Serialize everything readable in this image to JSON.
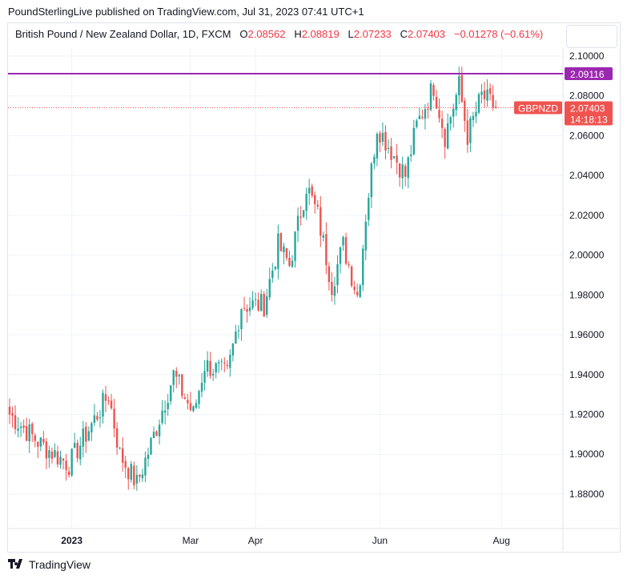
{
  "header": {
    "published": "PoundSterlingLive published on TradingView.com, Jul 31, 2023 07:41 UTC+1"
  },
  "legend": {
    "symbol_desc": "British Pound / New Zealand Dollar, 1D, FXCM",
    "o_label": "O",
    "o": "2.08562",
    "h_label": "H",
    "h": "2.08819",
    "l_label": "L",
    "l": "2.07233",
    "c_label": "C",
    "c": "2.07403",
    "change": "−0.01278 (−0.61%)"
  },
  "footer": {
    "brand": "TradingView",
    "logo_icon": "tradingview-logo-icon"
  },
  "colors": {
    "up": "#26a69a",
    "down": "#ef5350",
    "hline": "#9c27b0",
    "last": "#ef5350"
  },
  "chart_data": {
    "type": "candlestick",
    "symbol": "GBPNZD",
    "title": "British Pound / New Zealand Dollar, 1D, FXCM",
    "ylim": [
      1.865,
      2.11
    ],
    "y_ticks": [
      "2.10000",
      "2.08000",
      "2.06000",
      "2.04000",
      "2.02000",
      "2.00000",
      "1.98000",
      "1.96000",
      "1.94000",
      "1.92000",
      "1.90000",
      "1.88000"
    ],
    "x_ticks": [
      {
        "label": "2023",
        "i": 22
      },
      {
        "label": "Mar",
        "i": 64
      },
      {
        "label": "Apr",
        "i": 87
      },
      {
        "label": "Jun",
        "i": 131
      },
      {
        "label": "Aug",
        "i": 174
      }
    ],
    "n_candles": 173,
    "approx_close_path": [
      [
        0,
        1.92
      ],
      [
        11,
        1.905
      ],
      [
        21,
        1.895
      ],
      [
        35,
        1.93
      ],
      [
        39,
        1.9
      ],
      [
        45,
        1.885
      ],
      [
        50,
        1.905
      ],
      [
        58,
        1.94
      ],
      [
        65,
        1.92
      ],
      [
        69,
        1.945
      ],
      [
        77,
        1.94
      ],
      [
        82,
        1.975
      ],
      [
        90,
        1.975
      ],
      [
        95,
        2.005
      ],
      [
        99,
        1.995
      ],
      [
        105,
        2.035
      ],
      [
        109,
        2.02
      ],
      [
        114,
        1.985
      ],
      [
        118,
        2.005
      ],
      [
        123,
        1.98
      ],
      [
        124,
        1.99
      ],
      [
        126,
        2.02
      ],
      [
        130,
        2.065
      ],
      [
        136,
        2.05
      ],
      [
        140,
        2.04
      ],
      [
        144,
        2.065
      ],
      [
        150,
        2.085
      ],
      [
        154,
        2.06
      ],
      [
        159,
        2.085
      ],
      [
        162,
        2.06
      ],
      [
        167,
        2.08
      ],
      [
        172,
        2.074
      ]
    ],
    "horizontal_line": {
      "value": "2.09116"
    },
    "last_price": {
      "symbol": "GBPNZD",
      "value": "2.07403",
      "countdown": "14:18:13"
    },
    "grid": true
  }
}
